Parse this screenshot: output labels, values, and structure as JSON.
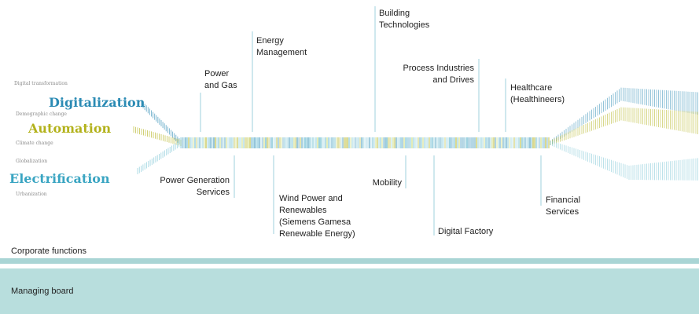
{
  "drivers": [
    {
      "trend": "Digital transformation"
    },
    {
      "field": "Digitalization"
    },
    {
      "trend": "Demographic change"
    },
    {
      "field": "Automation"
    },
    {
      "trend": "Climate change"
    },
    {
      "trend": "Globalization"
    },
    {
      "field": "Electrification"
    },
    {
      "trend": "Urbanization"
    }
  ],
  "divisions_top": [
    {
      "lines": [
        "Power",
        "and Gas"
      ]
    },
    {
      "lines": [
        "Energy",
        "Management"
      ]
    },
    {
      "lines": [
        "Building",
        "Technologies"
      ]
    },
    {
      "lines": [
        "Process Industries",
        "and Drives"
      ]
    },
    {
      "lines": [
        "Healthcare",
        "(Healthineers)"
      ]
    }
  ],
  "divisions_bottom": [
    {
      "lines": [
        "Power Generation",
        "Services"
      ]
    },
    {
      "lines": [
        "Wind Power and",
        "Renewables",
        "(Siemens Gamesa",
        "Renewable Energy)"
      ]
    },
    {
      "lines": [
        "Mobility"
      ]
    },
    {
      "lines": [
        "Digital Factory"
      ]
    },
    {
      "lines": [
        "Financial",
        "Services"
      ]
    }
  ],
  "corporate_functions": "Corporate functions",
  "managing_board": "Managing board"
}
